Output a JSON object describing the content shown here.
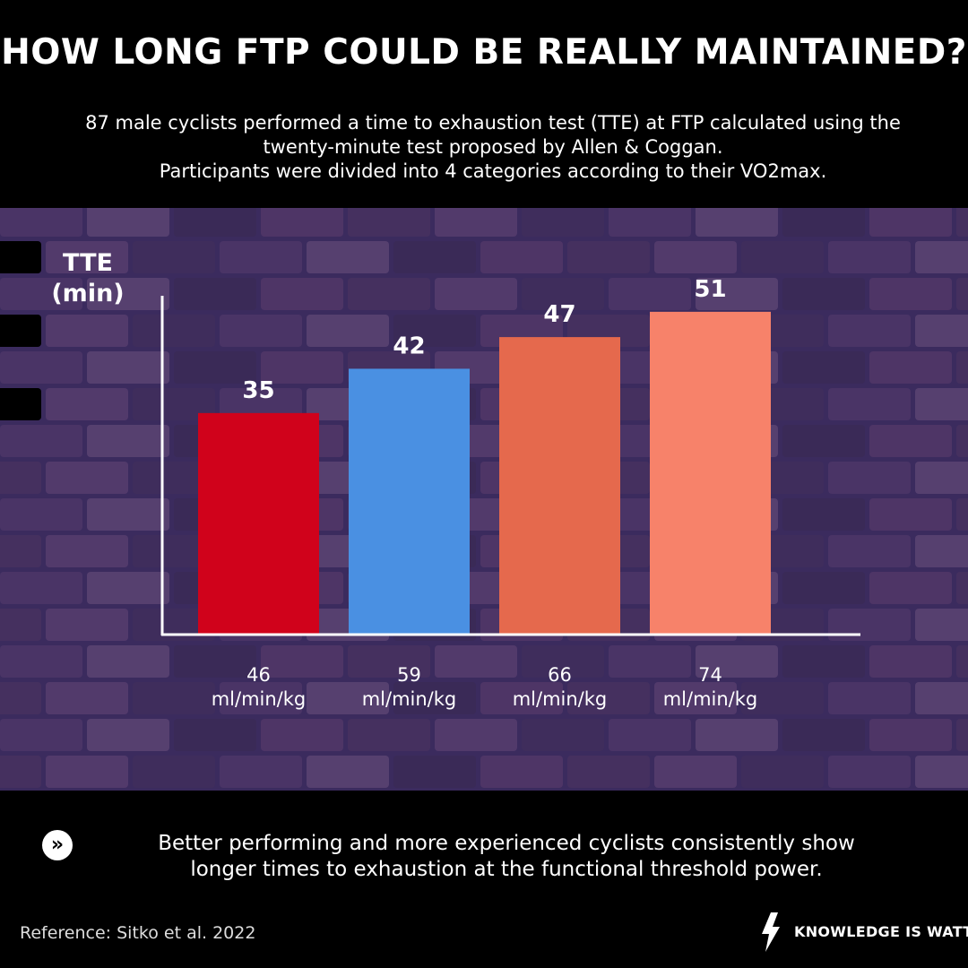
{
  "header": {
    "title": "HOW LONG FTP COULD BE REALLY  MAINTAINED?",
    "subtitle_lines": [
      "87 male cyclists performed a time to exhaustion test (TTE) at FTP calculated using the",
      "twenty-minute test proposed by Allen & Coggan.",
      "Participants were divided into 4 categories according to their VO2max."
    ]
  },
  "chart_data": {
    "type": "bar",
    "ylabel_lines": [
      "TTE",
      "(min)"
    ],
    "categories": [
      [
        "46",
        "ml/min/kg"
      ],
      [
        "59",
        "ml/min/kg"
      ],
      [
        "66",
        "ml/min/kg"
      ],
      [
        "74",
        "ml/min/kg"
      ]
    ],
    "values": [
      35,
      42,
      47,
      51
    ],
    "colors": [
      "#d0021b",
      "#4a90e2",
      "#e5694d",
      "#f7826a"
    ],
    "ylim": [
      0,
      60
    ]
  },
  "footer": {
    "icon": "double-chevron-right-icon",
    "text_lines": [
      "Better performing and more experienced cyclists consistently show",
      "longer times to exhaustion at the functional threshold power."
    ],
    "reference": "Reference: Sitko et al. 2022",
    "brand": "KNOWLEDGE IS WATT"
  }
}
